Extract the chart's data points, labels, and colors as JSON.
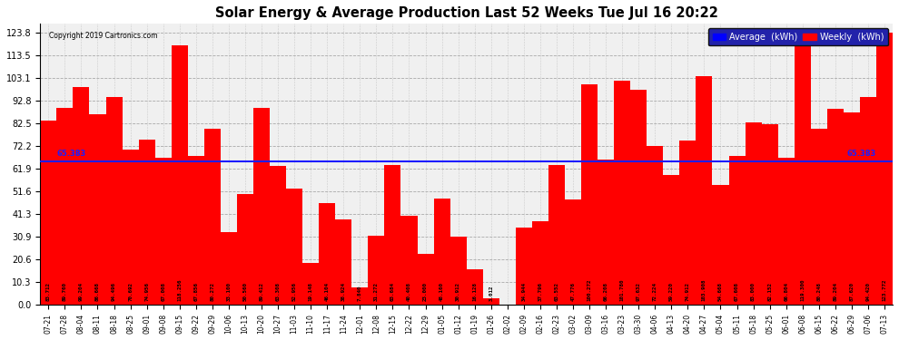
{
  "title": "Solar Energy & Average Production Last 52 Weeks Tue Jul 16 20:22",
  "copyright": "Copyright 2019 Cartronics.com",
  "average_value": 65.383,
  "bar_color": "#FF0000",
  "average_line_color": "#1C1CFF",
  "background_color": "#FFFFFF",
  "plot_bg_color": "#FFFFFF",
  "ylim": [
    0,
    128
  ],
  "yticks": [
    0.0,
    10.3,
    20.6,
    30.9,
    41.3,
    51.6,
    61.9,
    72.2,
    82.5,
    92.8,
    103.1,
    113.5,
    123.8
  ],
  "legend_avg_color": "#0000FF",
  "legend_weekly_color": "#FF0000",
  "categories": [
    "07-21",
    "07-28",
    "08-04",
    "08-11",
    "08-18",
    "08-25",
    "09-01",
    "09-08",
    "09-15",
    "09-22",
    "09-29",
    "10-06",
    "10-13",
    "10-20",
    "10-27",
    "11-03",
    "11-10",
    "11-17",
    "11-24",
    "12-01",
    "12-08",
    "12-15",
    "12-22",
    "12-29",
    "01-05",
    "01-12",
    "01-19",
    "01-26",
    "02-02",
    "02-09",
    "02-16",
    "02-23",
    "03-02",
    "03-09",
    "03-16",
    "03-23",
    "03-30",
    "04-06",
    "04-13",
    "04-20",
    "04-27",
    "05-04",
    "05-11",
    "05-18",
    "05-25",
    "06-01",
    "06-08",
    "06-15",
    "06-22",
    "06-29",
    "07-06",
    "07-13"
  ],
  "values": [
    83.712,
    89.76,
    99.204,
    86.668,
    94.496,
    70.692,
    74.956,
    67.008,
    118.256,
    67.856,
    80.272,
    33.1,
    50.56,
    89.412,
    63.308,
    52.956,
    19.148,
    46.104,
    38.924,
    7.84,
    31.272,
    63.684,
    40.408,
    23.0,
    48.16,
    30.912,
    16.128,
    3.012,
    0.0,
    34.944,
    37.796,
    63.552,
    47.776,
    100.272,
    66.208,
    101.78,
    97.632,
    72.224,
    59.22,
    74.912,
    103.908,
    54.668,
    67.608,
    83.0,
    82.152,
    66.804,
    119.3,
    80.248,
    89.204,
    87.62,
    94.42,
    123.772
  ]
}
